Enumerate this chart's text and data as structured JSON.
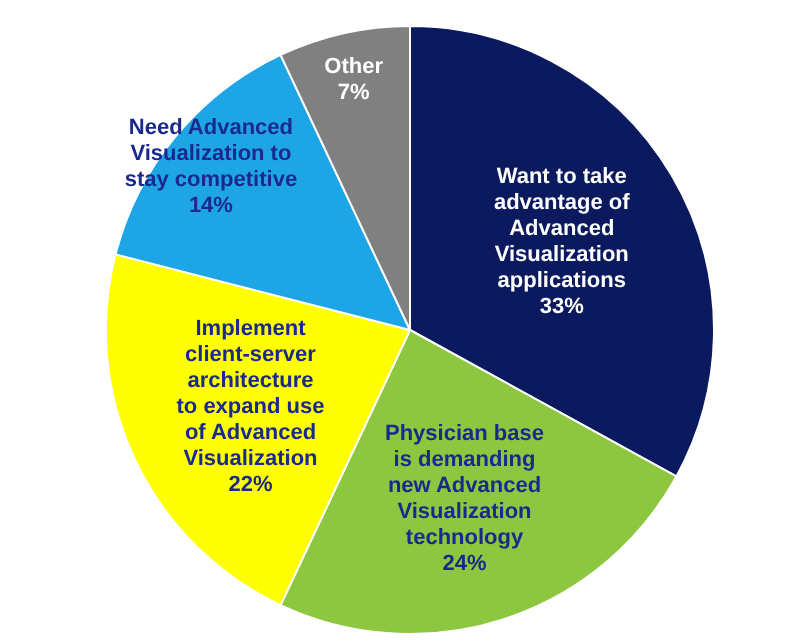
{
  "chart_data": {
    "type": "pie",
    "categories": [
      "Want to take advantage of Advanced Visualization applications",
      "Physician base is demanding new Advanced Visualization technology",
      "Implement client-server architecture to expand use of Advanced Visualization",
      "Need Advanced Visualization to stay competitive",
      "Other"
    ],
    "values": [
      33,
      24,
      22,
      14,
      7
    ],
    "value_labels": [
      "33%",
      "24%",
      "22%",
      "14%",
      "7%"
    ],
    "colors": [
      "#0b1a5e",
      "#8dc63f",
      "#ffff00",
      "#1ea5e6",
      "#808080"
    ]
  }
}
